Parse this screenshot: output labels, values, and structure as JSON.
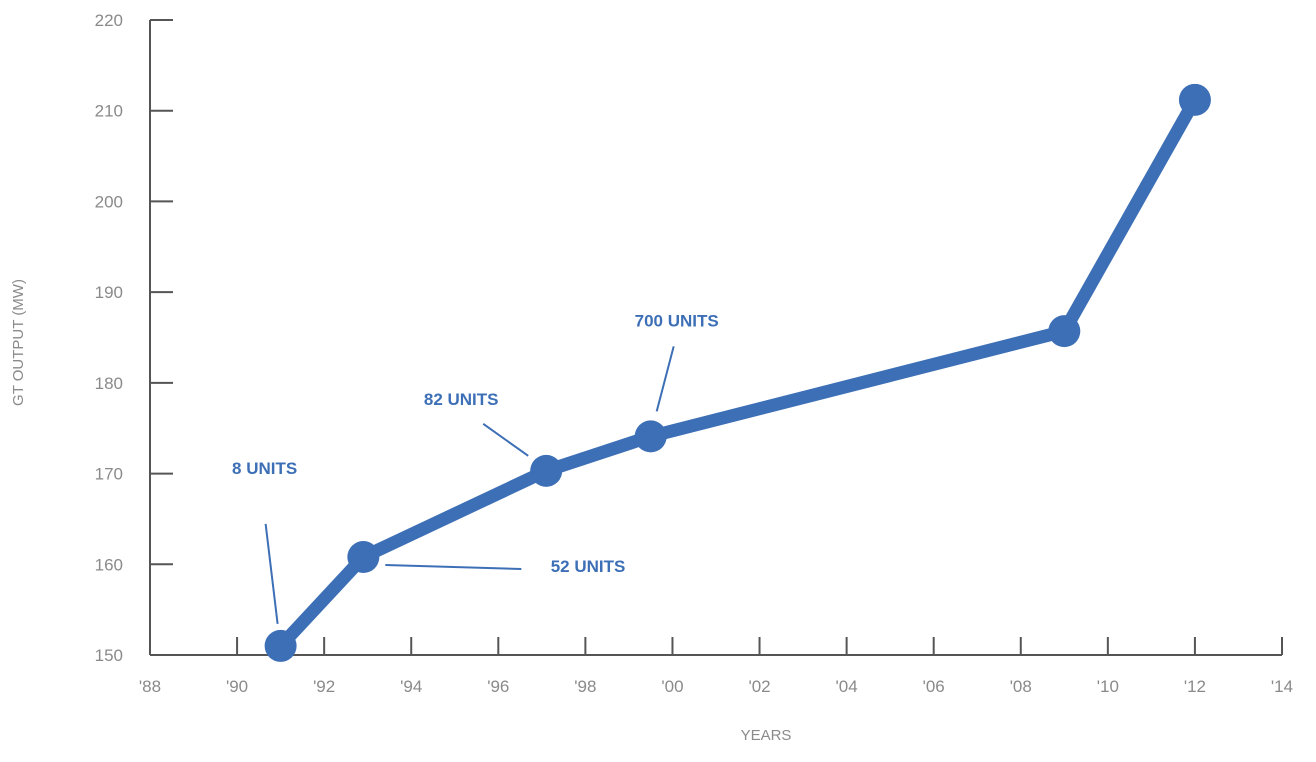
{
  "chart_data": {
    "type": "line",
    "title": "",
    "xlabel": "YEARS",
    "ylabel": "GT OUTPUT (MW)",
    "xlim": [
      1988,
      2014
    ],
    "ylim": [
      150,
      220
    ],
    "x_ticks": [
      1988,
      1990,
      1992,
      1994,
      1996,
      1998,
      2000,
      2002,
      2004,
      2006,
      2008,
      2010,
      2012,
      2014
    ],
    "x_tick_labels": [
      "'88",
      "'90",
      "'92",
      "'94",
      "'96",
      "'98",
      "'00",
      "'02",
      "'04",
      "'06",
      "'08",
      "'10",
      "'12",
      "'14"
    ],
    "y_ticks": [
      150,
      160,
      170,
      180,
      190,
      200,
      210,
      220
    ],
    "y_tick_labels": [
      "150",
      "160",
      "170",
      "180",
      "190",
      "200",
      "210",
      "220"
    ],
    "grid": false,
    "legend": "none",
    "series": [
      {
        "x": [
          1991.0,
          1992.9,
          1997.1,
          1999.5,
          2009.0,
          2012.0
        ],
        "y": [
          151,
          160.8,
          170.3,
          174.1,
          185.7,
          211.2
        ]
      }
    ],
    "annotations": [
      {
        "text": "8 UNITS",
        "x": 1991.0,
        "y": 151
      },
      {
        "text": "52 UNITS",
        "x": 1992.9,
        "y": 160.8
      },
      {
        "text": "82 UNITS",
        "x": 1997.1,
        "y": 170.3
      },
      {
        "text": "700 UNITS",
        "x": 1999.5,
        "y": 174.1
      }
    ],
    "colors": {
      "line": "#3d6fb6",
      "axis": "#555555",
      "ticks_text": "#8a8a8a"
    }
  }
}
